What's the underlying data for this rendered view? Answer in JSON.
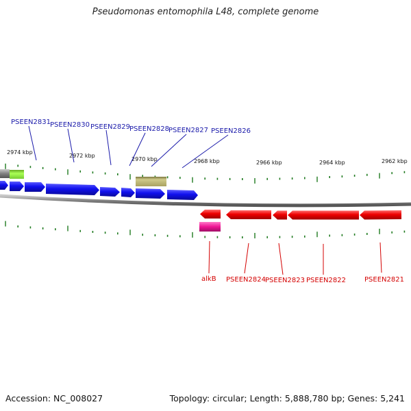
{
  "title": "Pseudomonas entomophila L48, complete genome",
  "footer": {
    "accession": "Accession: NC_008027",
    "summary": "Topology: circular; Length: 5,888,780 bp; Genes: 5,241"
  },
  "scale": {
    "tick_labels": [
      "2974 kbp",
      "2972 kbp",
      "2970 kbp",
      "2968 kbp",
      "2966 kbp",
      "2964 kbp",
      "2962 kbp"
    ]
  },
  "genes": {
    "forward_labels": [
      "PSEEN2831",
      "PSEEN2830",
      "PSEEN2829",
      "PSEEN2828",
      "PSEEN2827",
      "PSEEN2826"
    ],
    "reverse_labels": [
      "alkB",
      "PSEEN2824",
      "PSEEN2823",
      "PSEEN2822",
      "PSEEN2821"
    ]
  },
  "colors": {
    "forward_gene": "#1010ee",
    "reverse_gene": "#ee0000",
    "label_forward": "#1a1aaa",
    "label_reverse": "#d40000",
    "tick": "#1f7a1f",
    "backbone": "#808080",
    "feature_green": "#99ee44",
    "feature_khaki": "#bdb76b",
    "feature_magenta": "#ee1493",
    "feature_gray": "#777777"
  }
}
